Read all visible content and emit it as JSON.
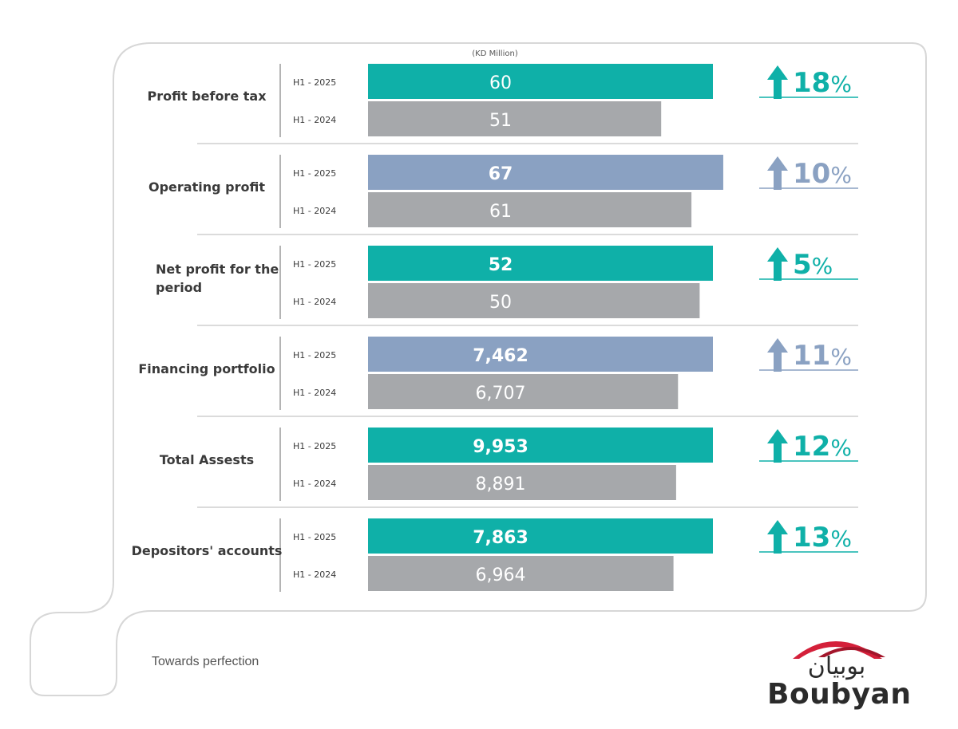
{
  "chart_data": {
    "type": "bar",
    "orientation": "horizontal",
    "unit_note": "(KD Million)",
    "series_labels": [
      "H1 - 2025",
      "H1 - 2024"
    ],
    "colors": {
      "teal": "#0fb0a8",
      "blue": "#8aa1c2",
      "gray": "#a6a8ab",
      "divider": "#cfcfcf"
    },
    "groups": [
      {
        "category": [
          "Profit before tax"
        ],
        "current": 60,
        "current_label": "60",
        "previous": 51,
        "previous_label": "51",
        "change": "18",
        "accent": "teal"
      },
      {
        "category": [
          "Operating profit"
        ],
        "current": 67,
        "current_label": "67",
        "previous": 61,
        "previous_label": "61",
        "change": "10",
        "accent": "blue"
      },
      {
        "category": [
          "Net profit for the",
          "period"
        ],
        "current": 52,
        "current_label": "52",
        "previous": 50,
        "previous_label": "50",
        "change": "5",
        "accent": "teal"
      },
      {
        "category": [
          "Financing portfolio"
        ],
        "current": 7462,
        "current_label": "7,462",
        "previous": 6707,
        "previous_label": "6,707",
        "change": "11",
        "accent": "blue"
      },
      {
        "category": [
          "Total Assests"
        ],
        "current": 9953,
        "current_label": "9,953",
        "previous": 8891,
        "previous_label": "8,891",
        "change": "12",
        "accent": "teal"
      },
      {
        "category": [
          "Depositors' accounts"
        ],
        "current": 7863,
        "current_label": "7,863",
        "previous": 6964,
        "previous_label": "6,964",
        "change": "13",
        "accent": "teal"
      }
    ]
  },
  "footer": {
    "tagline": "Towards perfection",
    "logo_text": "Boubyan",
    "logo_arabic": "بوبيان"
  }
}
